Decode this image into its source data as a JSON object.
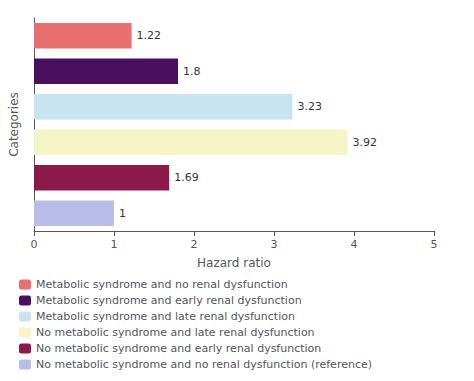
{
  "chart_data": {
    "type": "bar",
    "orientation": "horizontal",
    "categories": [
      "Metabolic syndrome and no renal dysfunction",
      "Metabolic syndrome and early renal dysfunction",
      "Metabolic syndrome and late renal dysfunction",
      "No metabolic syndrome and late renal dysfunction",
      "No metabolic syndrome and early renal dysfunction",
      "No metabolic syndrome and no renal dysfunction (reference)"
    ],
    "values": [
      1.22,
      1.8,
      3.23,
      3.92,
      1.69,
      1
    ],
    "colors": [
      "#e87070",
      "#4a1060",
      "#c8e4f0",
      "#f5f5c8",
      "#8b1a4a",
      "#b8bce8"
    ],
    "xlabel": "Hazard ratio",
    "ylabel": "Categories",
    "xlim": [
      0,
      5
    ],
    "xticks": [
      0,
      1,
      2,
      3,
      4,
      5
    ],
    "data_labels": true,
    "tick_labels": "x",
    "grid": false,
    "legend": "bottom"
  }
}
